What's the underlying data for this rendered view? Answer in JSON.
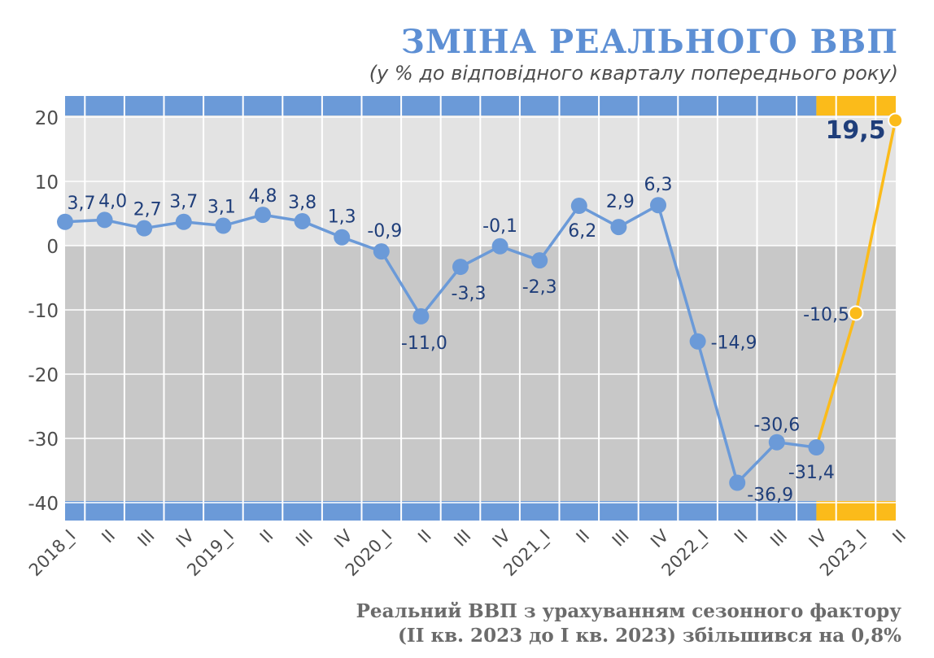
{
  "chart_data": {
    "type": "line",
    "title": "ЗМІНА РЕАЛЬНОГО ВВП",
    "subtitle": "(у % до відповідного кварталу попереднього року)",
    "x": [
      "2018_I",
      "II",
      "III",
      "IV",
      "2019_I",
      "II",
      "III",
      "IV",
      "2020_I",
      "II",
      "III",
      "IV",
      "2021_I",
      "II",
      "III",
      "IV",
      "2022_I",
      "II",
      "III",
      "IV",
      "2023_I",
      "II"
    ],
    "series": [
      {
        "values": [
          3.7,
          4.0,
          2.7,
          3.7,
          3.1,
          4.8,
          3.8,
          1.3,
          -0.9,
          -11.0,
          -3.3,
          -0.1,
          -2.3,
          6.2,
          2.9,
          6.3,
          -14.9,
          -36.9,
          -30.6,
          -31.4,
          -10.5,
          19.5
        ]
      }
    ],
    "highlight_from_index": 19,
    "data_labels": [
      "3,7",
      "4,0",
      "2,7",
      "3,7",
      "3,1",
      "4,8",
      "3,8",
      "1,3",
      "-0,9",
      "-11,0",
      "-3,3",
      "-0,1",
      "-2,3",
      "6,2",
      "2,9",
      "6,3",
      "-14,9",
      "-36,9",
      "-30,6",
      "-31,4",
      "-10,5",
      "19,5"
    ],
    "y_ticks": [
      20,
      10,
      0,
      -10,
      -20,
      -30,
      -40
    ],
    "y_tick_labels": [
      "20",
      "10",
      "0",
      "-10",
      "-20",
      "-30",
      "-40"
    ],
    "ylim": [
      -43,
      23
    ],
    "grid": true,
    "note_line1": "Реальний ВВП з урахуванням сезонного фактору",
    "note_line2": "(ІІ кв. 2023 до І кв. 2023) збільшився на 0,8%"
  },
  "colors": {
    "title": "#5d8fd4",
    "band": "#6b9ad8",
    "band_highlight": "#fbbb1a",
    "line": "#6b9ad8",
    "line_highlight": "#fbbb1a",
    "positive_area": "#e3e3e3",
    "negative_area": "#c8c8c8",
    "label": "#1f3e7a",
    "axis_text": "#4d4d4d"
  }
}
